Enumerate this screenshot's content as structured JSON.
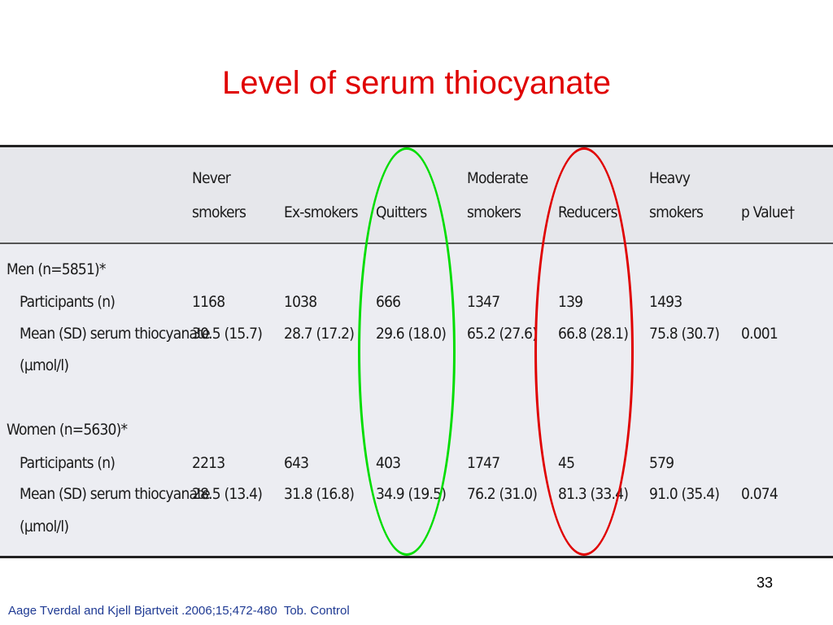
{
  "title": "Level of serum thiocyanate",
  "table": {
    "headers": [
      {
        "line1": "",
        "line2": ""
      },
      {
        "line1": "Never",
        "line2": "smokers"
      },
      {
        "line1": "",
        "line2": "Ex-smokers"
      },
      {
        "line1": "",
        "line2": "Quitters"
      },
      {
        "line1": "Moderate",
        "line2": "smokers"
      },
      {
        "line1": "",
        "line2": "Reducers"
      },
      {
        "line1": "Heavy",
        "line2": "smokers"
      },
      {
        "line1": "",
        "line2": "p Value†"
      }
    ],
    "groups": [
      {
        "label": "Men (n=5851)*",
        "participants_label": "Participants (n)",
        "participants": [
          "1168",
          "1038",
          "666",
          "1347",
          "139",
          "1493"
        ],
        "mean_label": "Mean (SD) serum thiocyanate",
        "mean_unit": "(µmol/l)",
        "means": [
          "30.5 (15.7)",
          "28.7 (17.2)",
          "29.6 (18.0)",
          "65.2 (27.6)",
          "66.8 (28.1)",
          "75.8 (30.7)"
        ],
        "p_value": "0.001"
      },
      {
        "label": "Women (n=5630)*",
        "participants_label": "Participants (n)",
        "participants": [
          "2213",
          "643",
          "403",
          "1747",
          "45",
          "579"
        ],
        "mean_label": "Mean (SD) serum thiocyanate",
        "mean_unit": "(µmol/l)",
        "means": [
          "28.5 (13.4)",
          "31.8 (16.8)",
          "34.9 (19.5)",
          "76.2 (31.0)",
          "81.3 (33.4)",
          "91.0 (35.4)"
        ],
        "p_value": "0.074"
      }
    ]
  },
  "highlights": {
    "quitters_color": "#00dd00",
    "reducers_color": "#e00000"
  },
  "page_number": "33",
  "citation": "Aage Tverdal and Kjell Bjartveit .2006;15;472-480  Tob. Control"
}
